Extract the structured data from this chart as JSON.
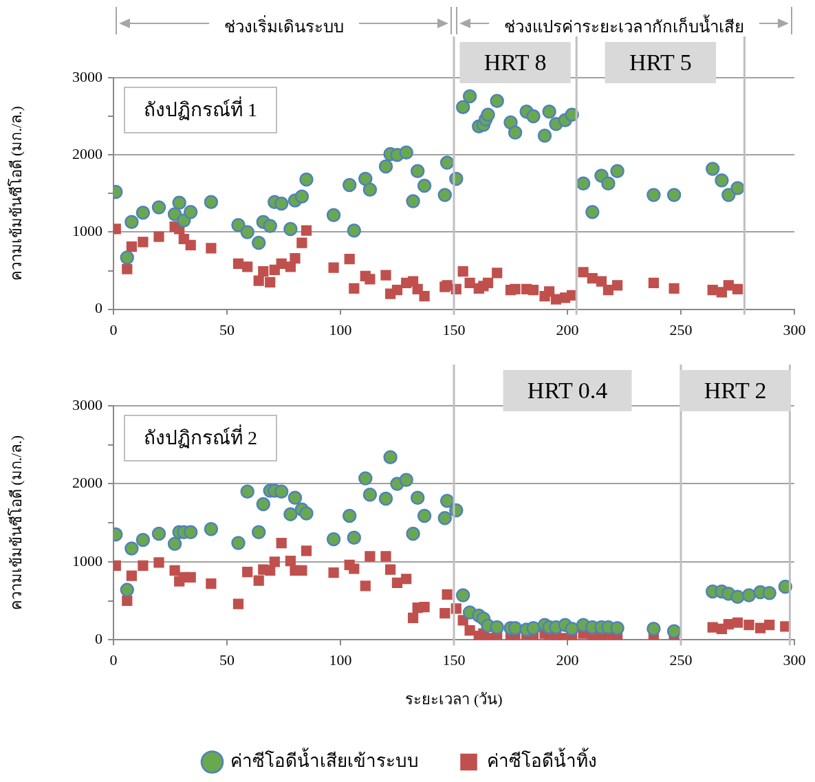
{
  "chart_data": [
    {
      "type": "scatter",
      "ylabel": "ความเข้มข้นซีโอดี (มก./ล.)",
      "xlim": [
        0,
        300
      ],
      "xticks": [
        0,
        50,
        100,
        150,
        200,
        250,
        300
      ],
      "ylim": [
        0,
        3000
      ],
      "yticks": [
        0,
        {
          "value": 500,
          "label": null
        },
        1000,
        {
          "value": 1500,
          "label": null
        },
        2000,
        {
          "value": 2500,
          "label": null
        },
        3000
      ],
      "grid": "y",
      "legend": false,
      "series": [
        {
          "type": "scatter",
          "marker": "circle",
          "color": "#6aa84f",
          "x": [
            1,
            6,
            8,
            13,
            20,
            27,
            29,
            31,
            34,
            43,
            55,
            59,
            64,
            66,
            69,
            71,
            74,
            78,
            80,
            83,
            85,
            97,
            104,
            106,
            111,
            113,
            120,
            122,
            125,
            129,
            132,
            134,
            137,
            146,
            147,
            151,
            154,
            157,
            161,
            163,
            164,
            165,
            169,
            175,
            177,
            182,
            185,
            190,
            192,
            195,
            199,
            202,
            207,
            211,
            215,
            218,
            222,
            238,
            247,
            264,
            268,
            271,
            275
          ],
          "values": [
            1520,
            670,
            1130,
            1250,
            1320,
            1230,
            1380,
            1150,
            1260,
            1390,
            1090,
            1000,
            860,
            1130,
            1080,
            1390,
            1370,
            1040,
            1410,
            1460,
            1680,
            1220,
            1610,
            1020,
            1690,
            1550,
            1850,
            2010,
            2000,
            2030,
            1400,
            1790,
            1600,
            1480,
            1900,
            1690,
            2620,
            2760,
            2370,
            2390,
            2460,
            2520,
            2700,
            2420,
            2290,
            2560,
            2500,
            2250,
            2560,
            2400,
            2450,
            2520,
            1630,
            1260,
            1730,
            1630,
            1790,
            1480,
            1480,
            1820,
            1670,
            1480,
            1570
          ]
        },
        {
          "type": "scatter",
          "marker": "square",
          "color": "#c0504d",
          "x": [
            1,
            6,
            8,
            13,
            20,
            27,
            29,
            31,
            34,
            43,
            55,
            59,
            64,
            66,
            69,
            71,
            74,
            78,
            80,
            83,
            85,
            97,
            104,
            106,
            111,
            113,
            120,
            122,
            125,
            129,
            132,
            134,
            137,
            146,
            147,
            151,
            154,
            157,
            161,
            163,
            165,
            169,
            175,
            177,
            182,
            185,
            190,
            192,
            195,
            199,
            202,
            207,
            211,
            215,
            218,
            222,
            238,
            247,
            264,
            268,
            271,
            275
          ],
          "values": [
            1040,
            520,
            810,
            870,
            940,
            1070,
            1040,
            910,
            830,
            790,
            590,
            550,
            370,
            490,
            350,
            510,
            590,
            550,
            660,
            860,
            1020,
            540,
            650,
            270,
            430,
            390,
            440,
            200,
            250,
            340,
            360,
            260,
            170,
            290,
            310,
            260,
            490,
            340,
            270,
            300,
            340,
            470,
            250,
            260,
            260,
            250,
            170,
            230,
            130,
            150,
            180,
            480,
            400,
            360,
            250,
            310,
            340,
            270,
            250,
            220,
            310,
            260
          ]
        }
      ],
      "ref_lines": [
        {
          "axis": "x",
          "value": 150
        },
        {
          "axis": "x",
          "value": 204
        },
        {
          "axis": "x",
          "value": 278
        }
      ],
      "annotations": [
        "ช่วงเริ่มเดินระบบ",
        "ช่วงแปรค่าระยะเวลากักเก็บน้ำเสีย",
        "ถังปฏิกรณ์ที่ 1",
        "HRT 8",
        "HRT 5"
      ]
    },
    {
      "type": "scatter",
      "xlabel": "ระยะเวลา (วัน)",
      "ylabel": "ความเข้มข้นซีโอดี (มก./ล.)",
      "xlim": [
        0,
        300
      ],
      "xticks": [
        0,
        50,
        100,
        150,
        200,
        250,
        300
      ],
      "ylim": [
        0,
        3000
      ],
      "yticks": [
        0,
        {
          "value": 500,
          "label": null
        },
        1000,
        {
          "value": 1500,
          "label": null
        },
        2000,
        {
          "value": 2500,
          "label": null
        },
        3000
      ],
      "grid": "y",
      "legend": "bottom",
      "series": [
        {
          "type": "scatter",
          "marker": "circle",
          "name": "ค่าซีโอดีน้ำเสียเข้าระบบ",
          "color": "#6aa84f",
          "x": [
            1,
            6,
            8,
            13,
            20,
            27,
            29,
            31,
            34,
            43,
            55,
            59,
            64,
            66,
            69,
            71,
            74,
            78,
            80,
            83,
            85,
            97,
            104,
            106,
            111,
            113,
            120,
            122,
            125,
            129,
            132,
            134,
            137,
            146,
            147,
            151,
            154,
            157,
            161,
            163,
            165,
            169,
            175,
            177,
            182,
            185,
            190,
            192,
            195,
            199,
            202,
            207,
            211,
            215,
            218,
            222,
            238,
            247,
            264,
            268,
            271,
            275,
            280,
            285,
            289,
            296
          ],
          "values": [
            1350,
            640,
            1170,
            1280,
            1360,
            1230,
            1380,
            1380,
            1380,
            1420,
            1240,
            1900,
            1380,
            1740,
            1910,
            1910,
            1900,
            1610,
            1820,
            1670,
            1620,
            1290,
            1590,
            1310,
            2070,
            1860,
            1810,
            2340,
            2000,
            2050,
            1360,
            1820,
            1590,
            1560,
            1780,
            1660,
            570,
            350,
            310,
            270,
            180,
            160,
            150,
            150,
            130,
            150,
            190,
            160,
            160,
            190,
            140,
            190,
            160,
            160,
            160,
            150,
            140,
            110,
            620,
            620,
            590,
            550,
            570,
            610,
            600,
            680
          ]
        },
        {
          "type": "scatter",
          "marker": "square",
          "name": "ค่าซีโอดีน้ำทิ้ง",
          "color": "#c0504d",
          "x": [
            1,
            6,
            8,
            13,
            20,
            27,
            29,
            31,
            34,
            43,
            55,
            59,
            64,
            66,
            69,
            71,
            74,
            78,
            80,
            83,
            85,
            97,
            104,
            106,
            111,
            113,
            120,
            122,
            125,
            129,
            132,
            134,
            137,
            146,
            147,
            151,
            154,
            157,
            161,
            163,
            165,
            169,
            175,
            177,
            182,
            185,
            190,
            192,
            195,
            199,
            202,
            207,
            211,
            215,
            218,
            222,
            238,
            247,
            264,
            268,
            271,
            275,
            280,
            285,
            289,
            296
          ],
          "values": [
            950,
            500,
            820,
            950,
            990,
            890,
            750,
            800,
            800,
            720,
            460,
            870,
            760,
            900,
            890,
            1000,
            1240,
            1010,
            890,
            890,
            1140,
            860,
            960,
            910,
            690,
            1070,
            1070,
            900,
            730,
            780,
            280,
            410,
            420,
            340,
            580,
            400,
            250,
            120,
            50,
            80,
            20,
            40,
            40,
            30,
            70,
            40,
            80,
            30,
            40,
            20,
            50,
            80,
            40,
            20,
            30,
            20,
            20,
            40,
            160,
            140,
            200,
            220,
            190,
            150,
            190,
            170
          ]
        }
      ],
      "ref_lines": [
        {
          "axis": "x",
          "value": 150
        },
        {
          "axis": "x",
          "value": 250
        },
        {
          "axis": "x",
          "value": 298
        }
      ],
      "annotations": [
        "ถังปฏิกรณ์ที่ 2",
        "HRT 0.4",
        "HRT 2"
      ]
    }
  ]
}
